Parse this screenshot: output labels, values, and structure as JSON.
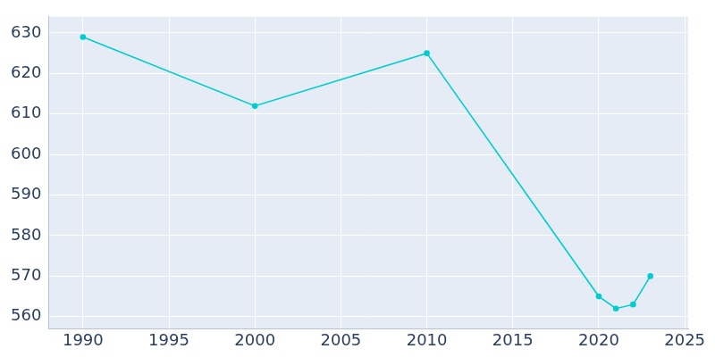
{
  "chart_data": {
    "type": "line",
    "x": [
      1990,
      2000,
      2010,
      2020,
      2021,
      2022,
      2023
    ],
    "values": [
      629,
      612,
      625,
      565,
      562,
      563,
      570
    ],
    "color": "#00cdcd",
    "marker": "circle",
    "xlim": [
      1988,
      2025.2
    ],
    "xticks": [
      1990,
      1995,
      2000,
      2005,
      2010,
      2015,
      2020,
      2025
    ],
    "ylim": [
      557,
      634
    ],
    "yticks": [
      560,
      570,
      580,
      590,
      600,
      610,
      620,
      630
    ],
    "grid": true
  }
}
